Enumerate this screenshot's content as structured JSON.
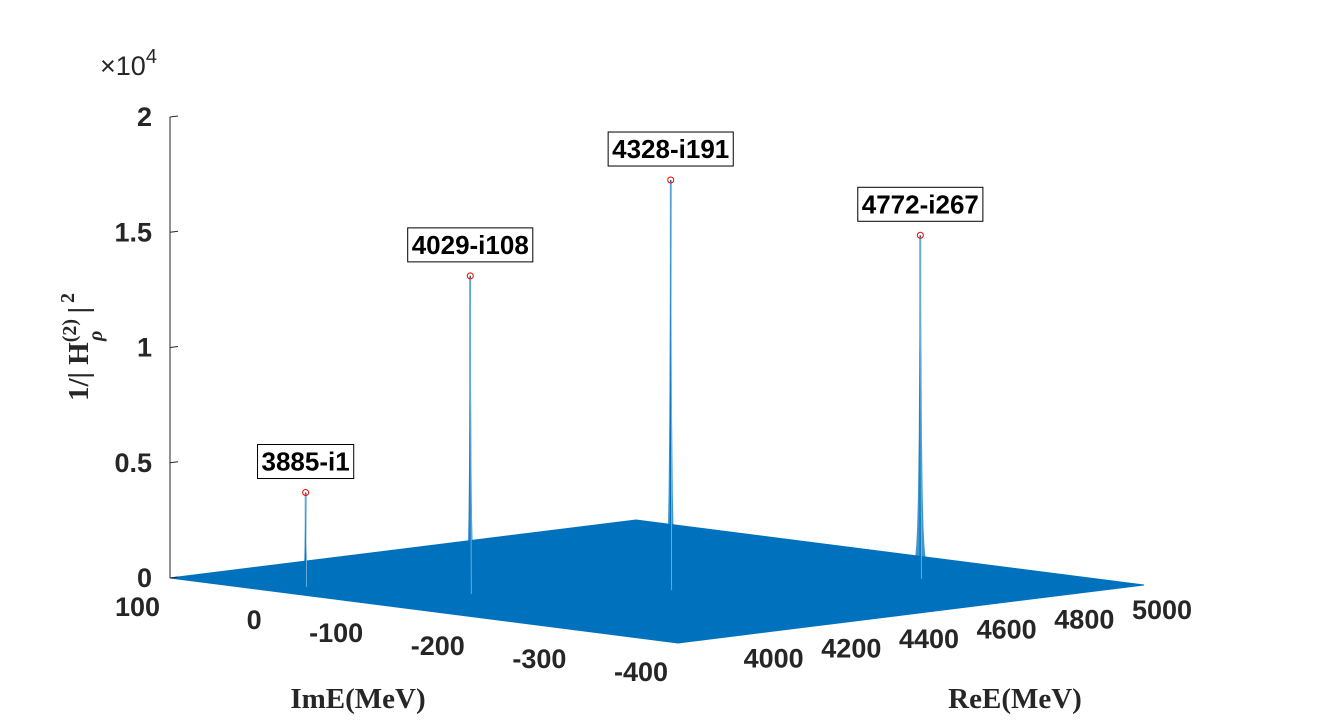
{
  "chart_data": {
    "type": "surface",
    "title": "",
    "zlabel": {
      "prefix": "1/| H",
      "sup": "(2)",
      "sub": "ρ",
      "suffix": " |",
      "power": "2"
    },
    "xlabel": "ReE(MeV)",
    "ylabel": "ImE(MeV)",
    "z_exponent": {
      "base": "×10",
      "power": "4"
    },
    "xlim": [
      3800,
      5000
    ],
    "ylim": [
      -400,
      100
    ],
    "zlim": [
      0,
      20000
    ],
    "x_ticks": [
      "4000",
      "4200",
      "4400",
      "4600",
      "4800",
      "5000"
    ],
    "y_ticks": [
      "100",
      "0",
      "-100",
      "-200",
      "-300",
      "-400"
    ],
    "z_ticks": [
      "0",
      "0.5",
      "1",
      "1.5",
      "2"
    ],
    "surface_color": "#0072BD",
    "marker_color": "#ff0000",
    "peaks": [
      {
        "label": "3885-i1",
        "re": 3885,
        "im": -1,
        "height": 4100
      },
      {
        "label": "4029-i108",
        "re": 4029,
        "im": -108,
        "height": 13800
      },
      {
        "label": "4328-i191",
        "re": 4328,
        "im": -191,
        "height": 17800
      },
      {
        "label": "4772-i267",
        "re": 4772,
        "im": -267,
        "height": 14900
      }
    ]
  }
}
